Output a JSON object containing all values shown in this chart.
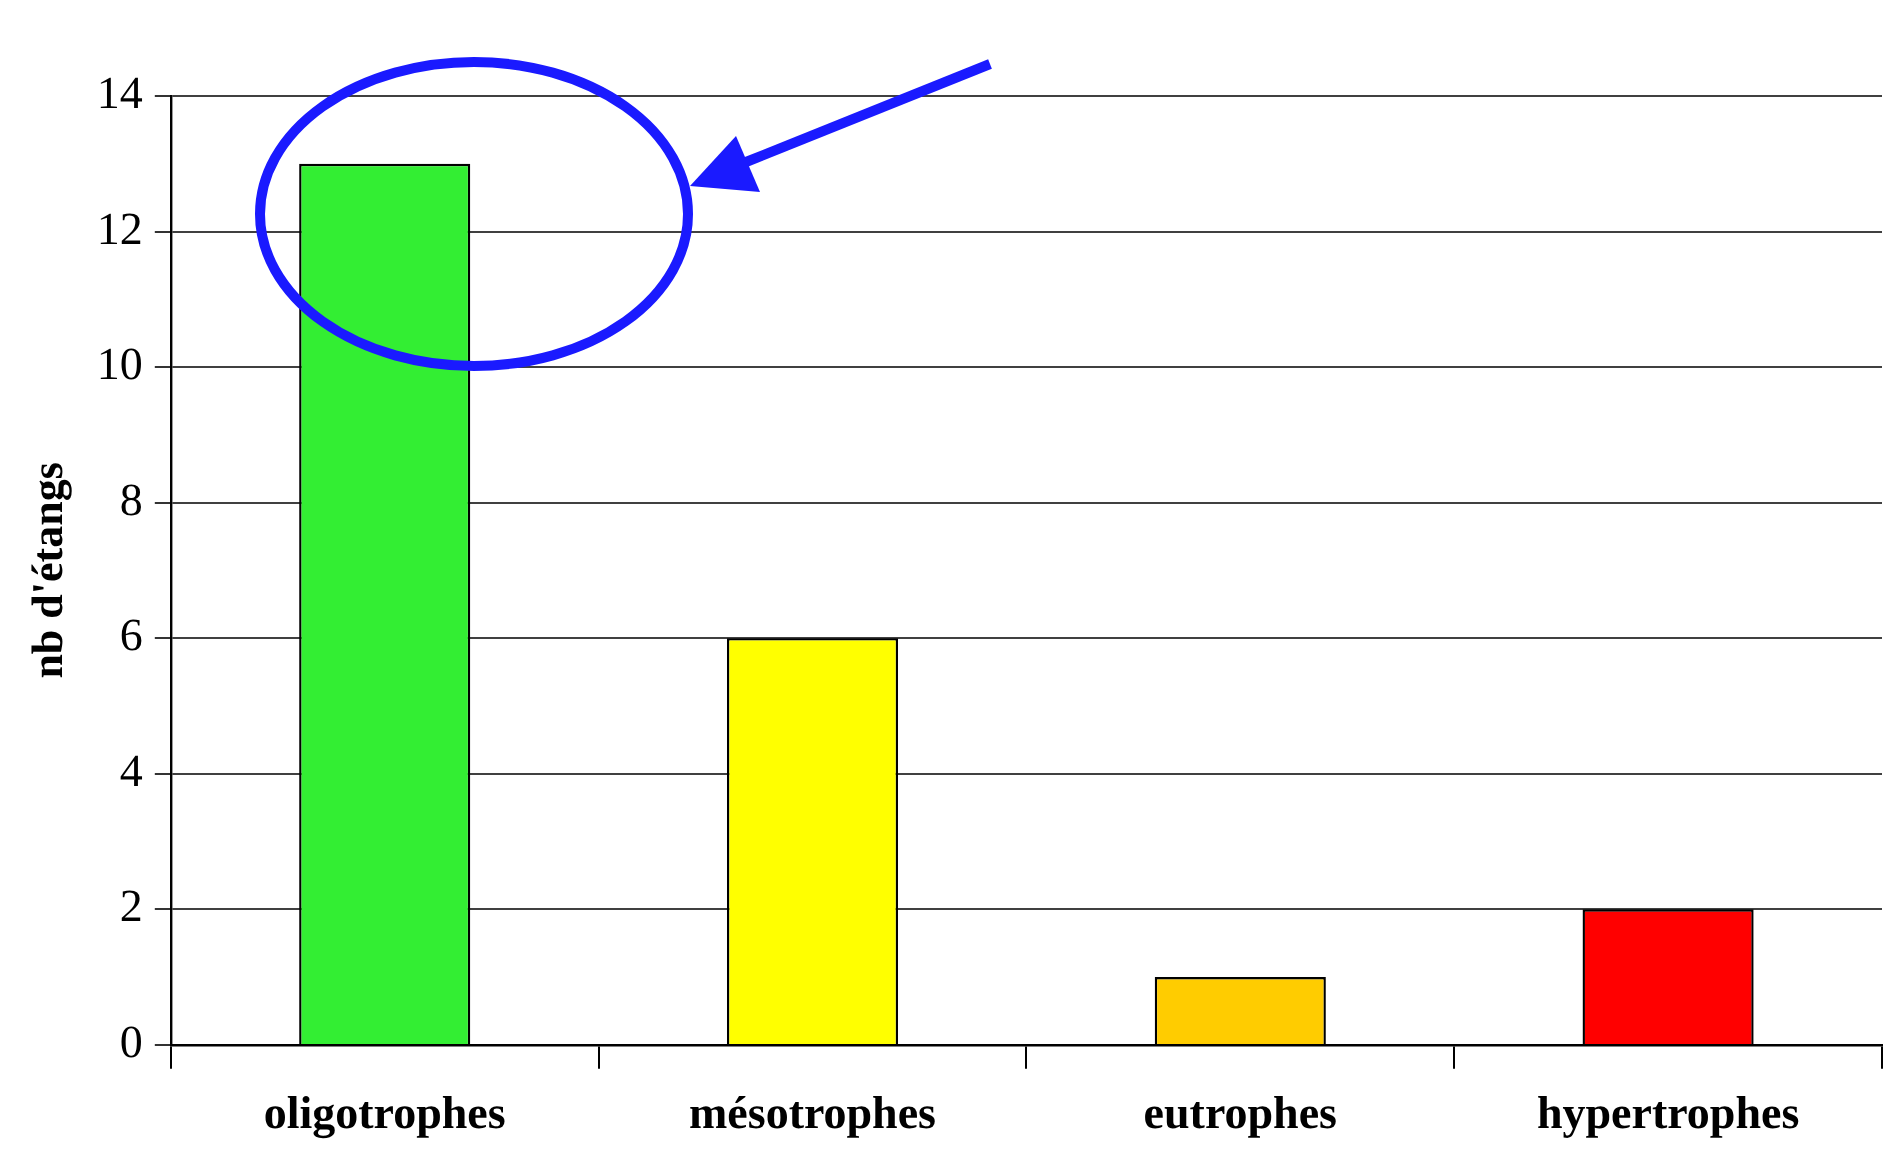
{
  "chart_data": {
    "type": "bar",
    "ylabel": "nb d'étangs",
    "categories": [
      "oligotrophes",
      "mésotrophes",
      "eutrophes",
      "hypertrophes"
    ],
    "values": [
      13,
      6,
      1,
      2
    ],
    "colors": [
      "#33ee33",
      "#ffff00",
      "#ffcc00",
      "#ff0000"
    ],
    "ylim": [
      0,
      14
    ],
    "yticks": [
      0,
      2,
      4,
      6,
      8,
      10,
      12,
      14
    ],
    "grid": "y",
    "legend": false
  }
}
